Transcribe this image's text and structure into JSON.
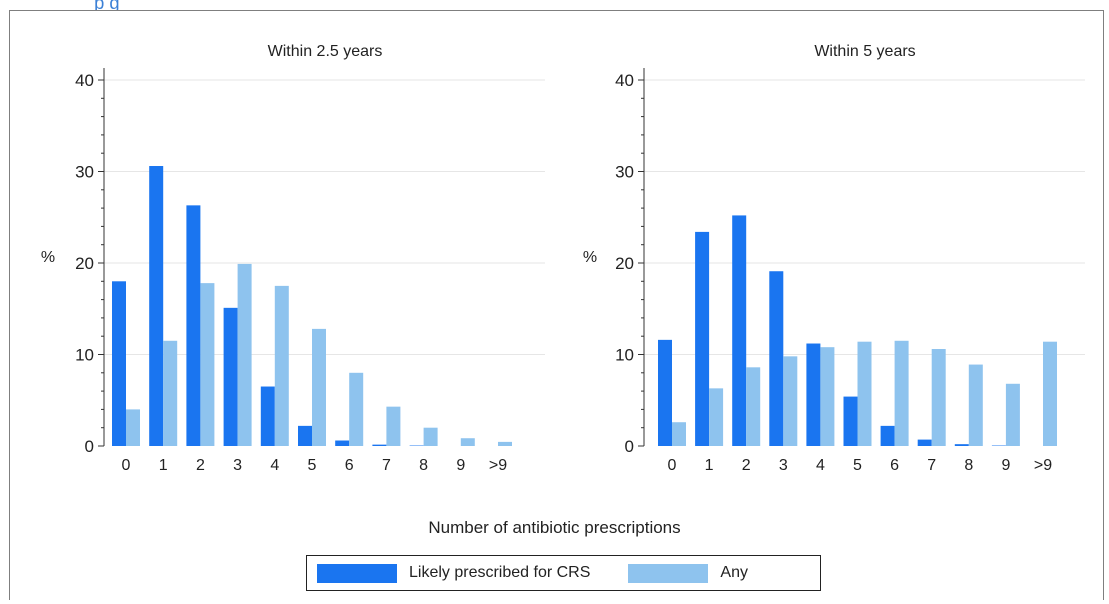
{
  "colors": {
    "series1": "#1a75f0",
    "series2": "#8ec3ee",
    "header_bar": "#3b80d6",
    "grid": "#e6e6e6",
    "axis": "#333333"
  },
  "header": {
    "fragment": "p     g"
  },
  "chart_data": [
    {
      "type": "bar",
      "title": "Within 2.5 years",
      "ylabel": "%",
      "xlabel": "Number of antibiotic prescriptions",
      "ylim": [
        0,
        40
      ],
      "yticks": [
        0,
        10,
        20,
        30,
        40
      ],
      "categories": [
        "0",
        "1",
        "2",
        "3",
        "4",
        "5",
        "6",
        "7",
        "8",
        "9",
        ">9"
      ],
      "series": [
        {
          "name": "Likely prescribed for CRS",
          "values": [
            18.0,
            30.6,
            26.3,
            15.1,
            6.5,
            2.2,
            0.6,
            0.15,
            0.05,
            0.0,
            0.0
          ]
        },
        {
          "name": "Any",
          "values": [
            4.0,
            11.5,
            17.8,
            19.9,
            17.5,
            12.8,
            8.0,
            4.3,
            2.0,
            0.85,
            0.45
          ]
        }
      ]
    },
    {
      "type": "bar",
      "title": "Within 5 years",
      "ylabel": "%",
      "xlabel": "Number of antibiotic prescriptions",
      "ylim": [
        0,
        40
      ],
      "yticks": [
        0,
        10,
        20,
        30,
        40
      ],
      "categories": [
        "0",
        "1",
        "2",
        "3",
        "4",
        "5",
        "6",
        "7",
        "8",
        "9",
        ">9"
      ],
      "series": [
        {
          "name": "Likely prescribed for CRS",
          "values": [
            11.6,
            23.4,
            25.2,
            19.1,
            11.2,
            5.4,
            2.2,
            0.7,
            0.2,
            0.05,
            0.0
          ]
        },
        {
          "name": "Any",
          "values": [
            2.6,
            6.3,
            8.6,
            9.8,
            10.8,
            11.4,
            11.5,
            10.6,
            8.9,
            6.8,
            11.4
          ]
        }
      ]
    }
  ],
  "legend": {
    "items": [
      "Likely prescribed for CRS",
      "Any"
    ]
  },
  "xaxis_title": "Number of antibiotic prescriptions"
}
